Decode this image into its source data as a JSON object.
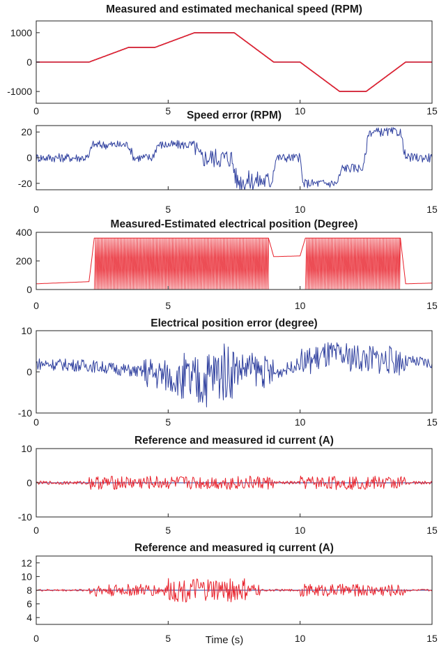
{
  "figure": {
    "colors": {
      "measured": "#2e3f9e",
      "estimated": "#e8202a",
      "axis": "#222222"
    },
    "xlabel": "Time (s)"
  },
  "chart_data": [
    {
      "type": "line",
      "title": "Measured and estimated mechanical speed (RPM)",
      "xlabel": "",
      "ylabel": "",
      "xlim": [
        0,
        15
      ],
      "ylim": [
        -1400,
        1400
      ],
      "xticks": [
        0,
        5,
        10,
        15
      ],
      "yticks": [
        1000,
        0,
        -1000
      ],
      "ytick_labels": [
        "1000",
        "0",
        "-1000"
      ],
      "grid": false,
      "series": [
        {
          "color": "#2e3f9e",
          "x": [
            0,
            2,
            3.5,
            4.5,
            6,
            7.5,
            9,
            10,
            11.5,
            12.5,
            14,
            15
          ],
          "y": [
            0,
            0,
            500,
            500,
            1000,
            1000,
            0,
            0,
            -1000,
            -1000,
            0,
            0
          ]
        },
        {
          "color": "#e8202a",
          "x": [
            0,
            2,
            3.5,
            4.5,
            6,
            7.5,
            9,
            10,
            11.5,
            12.5,
            14,
            15
          ],
          "y": [
            0,
            0,
            500,
            500,
            1000,
            1000,
            0,
            0,
            -1000,
            -1000,
            0,
            0
          ]
        }
      ]
    },
    {
      "type": "line",
      "title": "Speed error (RPM)",
      "xlabel": "",
      "ylabel": "",
      "xlim": [
        0,
        15
      ],
      "ylim": [
        -25,
        25
      ],
      "xticks": [
        0,
        5,
        10,
        15
      ],
      "yticks": [
        20,
        0,
        -20
      ],
      "ytick_labels": [
        "20",
        "0",
        "-20"
      ],
      "grid": false,
      "series": [
        {
          "color": "#2e3f9e",
          "x": [
            0,
            2,
            2.1,
            3.5,
            3.7,
            4.4,
            4.6,
            6,
            6.2,
            7.4,
            7.6,
            8.9,
            9.1,
            10,
            10.1,
            11.4,
            11.6,
            12.4,
            12.6,
            13.8,
            14,
            15
          ],
          "y": [
            0,
            0,
            10,
            10,
            0,
            0,
            10,
            10,
            0,
            0,
            -18,
            -18,
            0,
            0,
            -20,
            -20,
            -8,
            -8,
            20,
            20,
            0,
            0
          ]
        }
      ]
    },
    {
      "type": "line",
      "title": "Measured-Estimated electrical position (Degree)",
      "xlabel": "",
      "ylabel": "",
      "xlim": [
        0,
        15
      ],
      "ylim": [
        0,
        400
      ],
      "xticks": [
        0,
        5,
        10,
        15
      ],
      "yticks": [
        400,
        200,
        0
      ],
      "ytick_labels": [
        "400",
        "200",
        "0"
      ],
      "grid": false,
      "series": [
        {
          "color": "#e8202a",
          "x": [
            0,
            2,
            2.2,
            8.8,
            9,
            10,
            10.2,
            13.8,
            14,
            15
          ],
          "y": [
            40,
            55,
            360,
            360,
            230,
            235,
            360,
            360,
            40,
            45
          ]
        }
      ]
    },
    {
      "type": "line",
      "title": "Electrical position error (degree)",
      "xlabel": "",
      "ylabel": "",
      "xlim": [
        0,
        15
      ],
      "ylim": [
        -10,
        10
      ],
      "xticks": [
        0,
        5,
        10,
        15
      ],
      "yticks": [
        10,
        0,
        -10
      ],
      "ytick_labels": [
        "10",
        "0",
        "-10"
      ],
      "grid": false,
      "series": [
        {
          "color": "#2e3f9e",
          "x": [
            0,
            2,
            4,
            5,
            6,
            7,
            8,
            9,
            10,
            11,
            12,
            13,
            14,
            15
          ],
          "y": [
            2,
            1.5,
            0,
            -1,
            -3,
            0,
            1,
            -0.5,
            2,
            4,
            3.5,
            3,
            2.5,
            2
          ]
        }
      ]
    },
    {
      "type": "line",
      "title": "Reference and measured  id current (A)",
      "xlabel": "",
      "ylabel": "",
      "xlim": [
        0,
        15
      ],
      "ylim": [
        -10,
        10
      ],
      "xticks": [
        0,
        5,
        10,
        15
      ],
      "yticks": [
        10,
        0,
        -10
      ],
      "ytick_labels": [
        "10",
        "0",
        "-10"
      ],
      "grid": false,
      "series": [
        {
          "color": "#2e3f9e",
          "x": [
            0,
            15
          ],
          "y": [
            0,
            0
          ]
        },
        {
          "color": "#e8202a",
          "x": [
            0,
            15
          ],
          "y": [
            0,
            0
          ]
        }
      ]
    },
    {
      "type": "line",
      "title": "Reference and measured  iq current (A)",
      "xlabel": "Time (s)",
      "ylabel": "",
      "xlim": [
        0,
        15
      ],
      "ylim": [
        3,
        13
      ],
      "xticks": [
        0,
        5,
        10,
        15
      ],
      "yticks": [
        12,
        10,
        8,
        6,
        4
      ],
      "ytick_labels": [
        "12",
        "10",
        "8",
        "6",
        "4"
      ],
      "grid": false,
      "series": [
        {
          "color": "#2e3f9e",
          "x": [
            0,
            15
          ],
          "y": [
            8,
            8
          ]
        },
        {
          "color": "#e8202a",
          "x": [
            0,
            15
          ],
          "y": [
            8,
            8
          ]
        }
      ]
    }
  ]
}
